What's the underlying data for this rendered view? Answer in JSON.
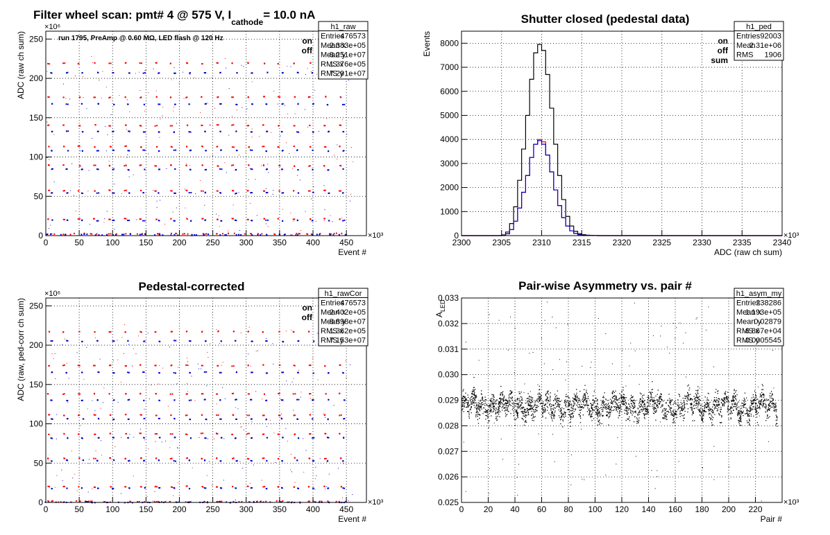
{
  "page_title": {
    "prefix": "Filter wheel scan: pmt#   4 @   575 V, I",
    "sub": "cathode",
    "suffix": "= 10.0 nA"
  },
  "chart_data": [
    {
      "id": "raw",
      "type": "scatter",
      "title": "",
      "subtitle": "run 1795, PreAmp @ 0.60 MΩ, LED flash @  120 Hz",
      "xlabel": "Event #",
      "ylabel": "ADC (raw ch sum)",
      "x_multiplier": "×10³",
      "y_multiplier": "×10⁶",
      "xlim": [
        0,
        480
      ],
      "ylim": [
        0,
        260
      ],
      "xticks": [
        0,
        50,
        100,
        150,
        200,
        250,
        300,
        350,
        400,
        450
      ],
      "yticks": [
        0,
        50,
        100,
        150,
        200,
        250
      ],
      "grid": true,
      "legend": {
        "position": "top-right",
        "entries": [
          {
            "label": "on",
            "color": "#ff0000"
          },
          {
            "label": "off",
            "color": "#0000cc"
          }
        ]
      },
      "stats": {
        "name": "h1_raw",
        "rows": [
          [
            "Entries",
            "476573"
          ],
          [
            "Mean x",
            "2.383e+05"
          ],
          [
            "Mean y",
            "8.251e+07"
          ],
          [
            "RMS x",
            "1.376e+05"
          ],
          [
            "RMS y",
            "7.291e+07"
          ]
        ]
      },
      "series": [
        {
          "name": "on",
          "color": "#ff0000",
          "levels": [
            220,
            177,
            141,
            114,
            90,
            58,
            22,
            3
          ]
        },
        {
          "name": "off",
          "color": "#0000cc",
          "levels": [
            208,
            168,
            133,
            109,
            85,
            55,
            20,
            2
          ]
        }
      ],
      "step_period": 23
    },
    {
      "id": "ped",
      "type": "histogram",
      "title": "Shutter closed (pedestal data)",
      "xlabel": "ADC (raw ch sum)",
      "ylabel": "Events",
      "x_multiplier": "×10³",
      "xlim": [
        2300,
        2340
      ],
      "ylim": [
        0,
        8500
      ],
      "xticks": [
        2300,
        2305,
        2310,
        2315,
        2320,
        2325,
        2330,
        2335,
        2340
      ],
      "yticks": [
        0,
        1000,
        2000,
        3000,
        4000,
        5000,
        6000,
        7000,
        8000
      ],
      "grid": true,
      "legend": {
        "position": "top-right",
        "entries": [
          {
            "label": "on",
            "color": "#ff0000"
          },
          {
            "label": "off",
            "color": "#0000cc"
          },
          {
            "label": "sum",
            "color": "#000000"
          }
        ]
      },
      "stats": {
        "name": "h1_ped",
        "rows": [
          [
            "Entries",
            "92003"
          ],
          [
            "Mean",
            "2.31e+06"
          ],
          [
            "RMS",
            "1906"
          ]
        ]
      },
      "bin_width": 0.5,
      "bins_x": [
        2305.0,
        2305.5,
        2306.0,
        2306.5,
        2307.0,
        2307.5,
        2308.0,
        2308.5,
        2309.0,
        2309.5,
        2310.0,
        2310.5,
        2311.0,
        2311.5,
        2312.0,
        2312.5,
        2313.0,
        2313.5,
        2314.0,
        2314.5,
        2315.0,
        2315.5,
        2316.0,
        2316.5
      ],
      "series": [
        {
          "name": "sum",
          "color": "#000000",
          "values": [
            30,
            150,
            500,
            1200,
            2300,
            3600,
            5000,
            6500,
            7600,
            7950,
            7700,
            6700,
            5300,
            3800,
            2500,
            1500,
            800,
            400,
            180,
            80,
            40,
            20,
            10,
            5
          ]
        },
        {
          "name": "on",
          "color": "#ff0000",
          "values": [
            15,
            75,
            250,
            600,
            1150,
            1800,
            2500,
            3250,
            3800,
            4000,
            3900,
            3350,
            2650,
            1900,
            1250,
            750,
            400,
            200,
            90,
            40,
            20,
            10,
            5,
            2
          ]
        },
        {
          "name": "off",
          "color": "#0000cc",
          "values": [
            15,
            75,
            250,
            600,
            1150,
            1800,
            2500,
            3250,
            3800,
            3950,
            3800,
            3350,
            2650,
            1900,
            1250,
            750,
            400,
            200,
            90,
            40,
            20,
            10,
            5,
            3
          ]
        }
      ]
    },
    {
      "id": "rawcor",
      "type": "scatter",
      "title": "Pedestal-corrected",
      "xlabel": "Event #",
      "ylabel": "ADC (raw, ped-corr ch sum)",
      "x_multiplier": "×10³",
      "y_multiplier": "×10⁶",
      "xlim": [
        0,
        480
      ],
      "ylim": [
        0,
        260
      ],
      "xticks": [
        0,
        50,
        100,
        150,
        200,
        250,
        300,
        350,
        400,
        450
      ],
      "yticks": [
        0,
        50,
        100,
        150,
        200,
        250
      ],
      "grid": true,
      "legend": {
        "position": "top-right",
        "entries": [
          {
            "label": "on",
            "color": "#ff0000"
          },
          {
            "label": "off",
            "color": "#0000cc"
          }
        ]
      },
      "stats": {
        "name": "h1_rawCor",
        "rows": [
          [
            "Entries",
            "476573"
          ],
          [
            "Mean x",
            "2.402e+05"
          ],
          [
            "Mean y",
            "8.898e+07"
          ],
          [
            "RMS x",
            "1.362e+05"
          ],
          [
            "RMS y",
            "7.153e+07"
          ]
        ]
      },
      "series": [
        {
          "name": "on",
          "color": "#ff0000",
          "levels": [
            218,
            175,
            139,
            112,
            88,
            57,
            21,
            2
          ]
        },
        {
          "name": "off",
          "color": "#0000cc",
          "levels": [
            206,
            166,
            131,
            107,
            83,
            54,
            19,
            1
          ]
        }
      ],
      "step_period": 23
    },
    {
      "id": "asym",
      "type": "scatter",
      "title": "Pair-wise Asymmetry vs. pair #",
      "xlabel": "Pair #",
      "ylabel": "A_LED",
      "x_multiplier": "×10³",
      "xlim": [
        0,
        240
      ],
      "ylim": [
        0.025,
        0.033
      ],
      "xticks": [
        0,
        20,
        40,
        60,
        80,
        100,
        120,
        140,
        160,
        180,
        200,
        220
      ],
      "yticks": [
        0.025,
        0.026,
        0.027,
        0.028,
        0.029,
        0.03,
        0.031,
        0.032,
        0.033
      ],
      "grid": true,
      "stats": {
        "name": "h1_asym_my",
        "rows": [
          [
            "Entries",
            "238286"
          ],
          [
            "Mean x",
            "1.193e+05"
          ],
          [
            "Mean y",
            "0.02879"
          ],
          [
            "RMS x",
            "6.867e+04"
          ],
          [
            "RMS y",
            "0.0005545"
          ]
        ]
      },
      "series": [
        {
          "name": "asym",
          "color": "#000000",
          "mean": 0.02879,
          "rms": 0.0005545
        }
      ]
    }
  ]
}
